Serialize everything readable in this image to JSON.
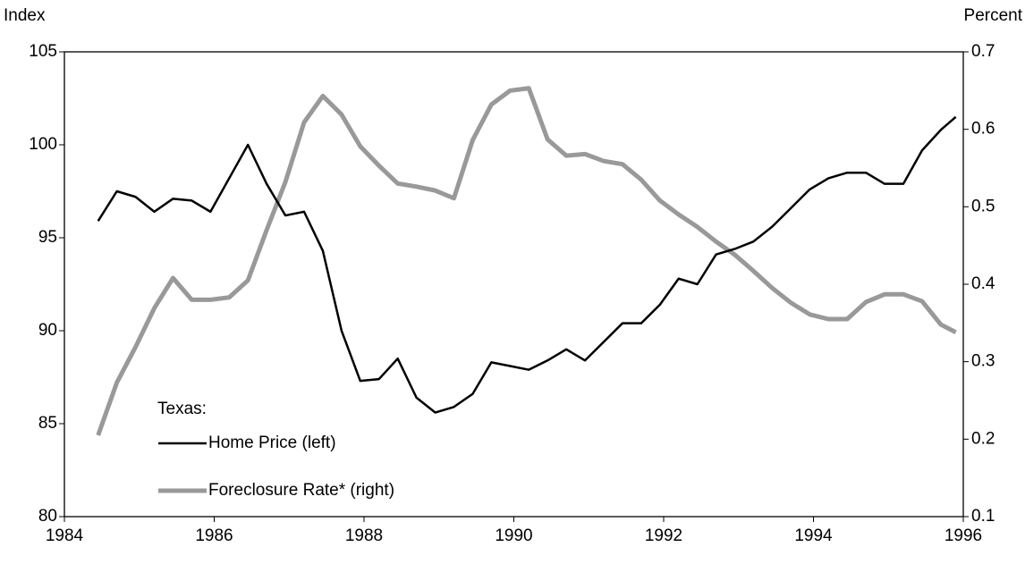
{
  "chart_data": {
    "type": "line",
    "y_label": "Index",
    "y2_label": "Percent",
    "legend_title": "Texas:",
    "x": [
      1984.45,
      1984.7,
      1984.95,
      1985.2,
      1985.45,
      1985.7,
      1985.95,
      1986.2,
      1986.45,
      1986.7,
      1986.95,
      1987.2,
      1987.45,
      1987.7,
      1987.95,
      1988.2,
      1988.45,
      1988.7,
      1988.95,
      1989.2,
      1989.45,
      1989.7,
      1989.95,
      1990.2,
      1990.45,
      1990.7,
      1990.95,
      1991.2,
      1991.45,
      1991.7,
      1991.95,
      1992.2,
      1992.45,
      1992.7,
      1992.95,
      1993.2,
      1993.45,
      1993.7,
      1993.95,
      1994.2,
      1994.45,
      1994.7,
      1994.95,
      1995.2,
      1995.45,
      1995.7,
      1995.9
    ],
    "series": [
      {
        "name": "Home Price (left)",
        "color": "#000000",
        "axis": "y",
        "values": [
          95.9,
          97.5,
          97.2,
          96.4,
          97.1,
          97.0,
          96.4,
          98.2,
          100,
          97.9,
          96.2,
          96.4,
          94.3,
          90,
          87.3,
          87.4,
          88.5,
          86.4,
          85.6,
          85.9,
          86.6,
          88.3,
          88.1,
          87.9,
          88.4,
          89.0,
          88.4,
          89.4,
          90.4,
          90.4,
          91.4,
          92.8,
          92.5,
          94.1,
          94.4,
          94.8,
          95.6,
          96.6,
          97.6,
          98.2,
          98.5,
          98.5,
          97.9,
          97.9,
          99.7,
          100.8,
          101.5
        ]
      },
      {
        "name": "Foreclosure Rate* (right)",
        "color": "#999999",
        "axis": "y2",
        "values": [
          0.205,
          0.273,
          0.319,
          0.369,
          0.408,
          0.38,
          0.38,
          0.383,
          0.405,
          0.47,
          0.532,
          0.609,
          0.643,
          0.619,
          0.578,
          0.553,
          0.53,
          0.526,
          0.521,
          0.511,
          0.586,
          0.632,
          0.65,
          0.653,
          0.587,
          0.566,
          0.568,
          0.559,
          0.555,
          0.535,
          0.508,
          0.49,
          0.474,
          0.455,
          0.438,
          0.417,
          0.395,
          0.376,
          0.361,
          0.355,
          0.355,
          0.377,
          0.387,
          0.387,
          0.378,
          0.348,
          0.338
        ]
      }
    ],
    "xlim": [
      1984,
      1996
    ],
    "xticks": [
      1984,
      1986,
      1988,
      1990,
      1992,
      1994,
      1996
    ],
    "ylim": [
      80,
      105
    ],
    "yticks": [
      80,
      85,
      90,
      95,
      100,
      105
    ],
    "y2lim": [
      0.1,
      0.7
    ],
    "y2ticks": [
      0.1,
      0.2,
      0.3,
      0.4,
      0.5,
      0.6,
      0.7
    ],
    "grid": false
  }
}
